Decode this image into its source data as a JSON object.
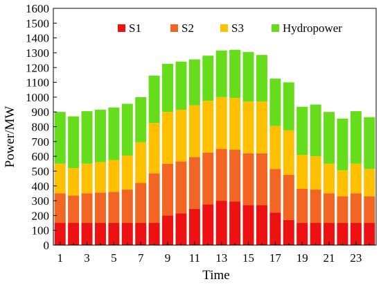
{
  "chart_data": {
    "type": "bar",
    "stacked": true,
    "x": [
      1,
      2,
      3,
      4,
      5,
      6,
      7,
      8,
      9,
      10,
      11,
      12,
      13,
      14,
      15,
      16,
      17,
      18,
      19,
      20,
      21,
      22,
      23,
      24
    ],
    "x_tick_labels": [
      "1",
      "3",
      "5",
      "7",
      "9",
      "11",
      "13",
      "15",
      "17",
      "19",
      "21",
      "23"
    ],
    "series": [
      {
        "name": "S1",
        "color": "#ee1111",
        "values": [
          150,
          150,
          150,
          150,
          150,
          150,
          150,
          150,
          200,
          215,
          245,
          275,
          300,
          295,
          270,
          270,
          220,
          170,
          150,
          150,
          150,
          150,
          150,
          150
        ]
      },
      {
        "name": "S2",
        "color": "#f26522",
        "values": [
          200,
          185,
          200,
          205,
          210,
          225,
          270,
          335,
          350,
          350,
          350,
          350,
          350,
          350,
          350,
          350,
          295,
          305,
          230,
          225,
          200,
          180,
          200,
          180
        ]
      },
      {
        "name": "S3",
        "color": "#ffc000",
        "values": [
          200,
          185,
          200,
          205,
          215,
          230,
          275,
          340,
          350,
          350,
          350,
          350,
          350,
          350,
          350,
          350,
          290,
          300,
          230,
          225,
          200,
          175,
          200,
          185
        ]
      },
      {
        "name": "Hydropower",
        "color": "#66dd1a",
        "values": [
          350,
          350,
          355,
          355,
          355,
          350,
          305,
          320,
          325,
          325,
          310,
          305,
          315,
          325,
          335,
          315,
          320,
          325,
          325,
          350,
          350,
          350,
          355,
          350
        ]
      }
    ],
    "xlabel": "Time",
    "ylabel": "Power/MW",
    "ylim": [
      0,
      1600
    ],
    "y_ticks": [
      0,
      100,
      200,
      300,
      400,
      500,
      600,
      700,
      800,
      900,
      1000,
      1100,
      1200,
      1300,
      1400,
      1500,
      1600
    ],
    "grid": false,
    "legend_position": "top"
  }
}
